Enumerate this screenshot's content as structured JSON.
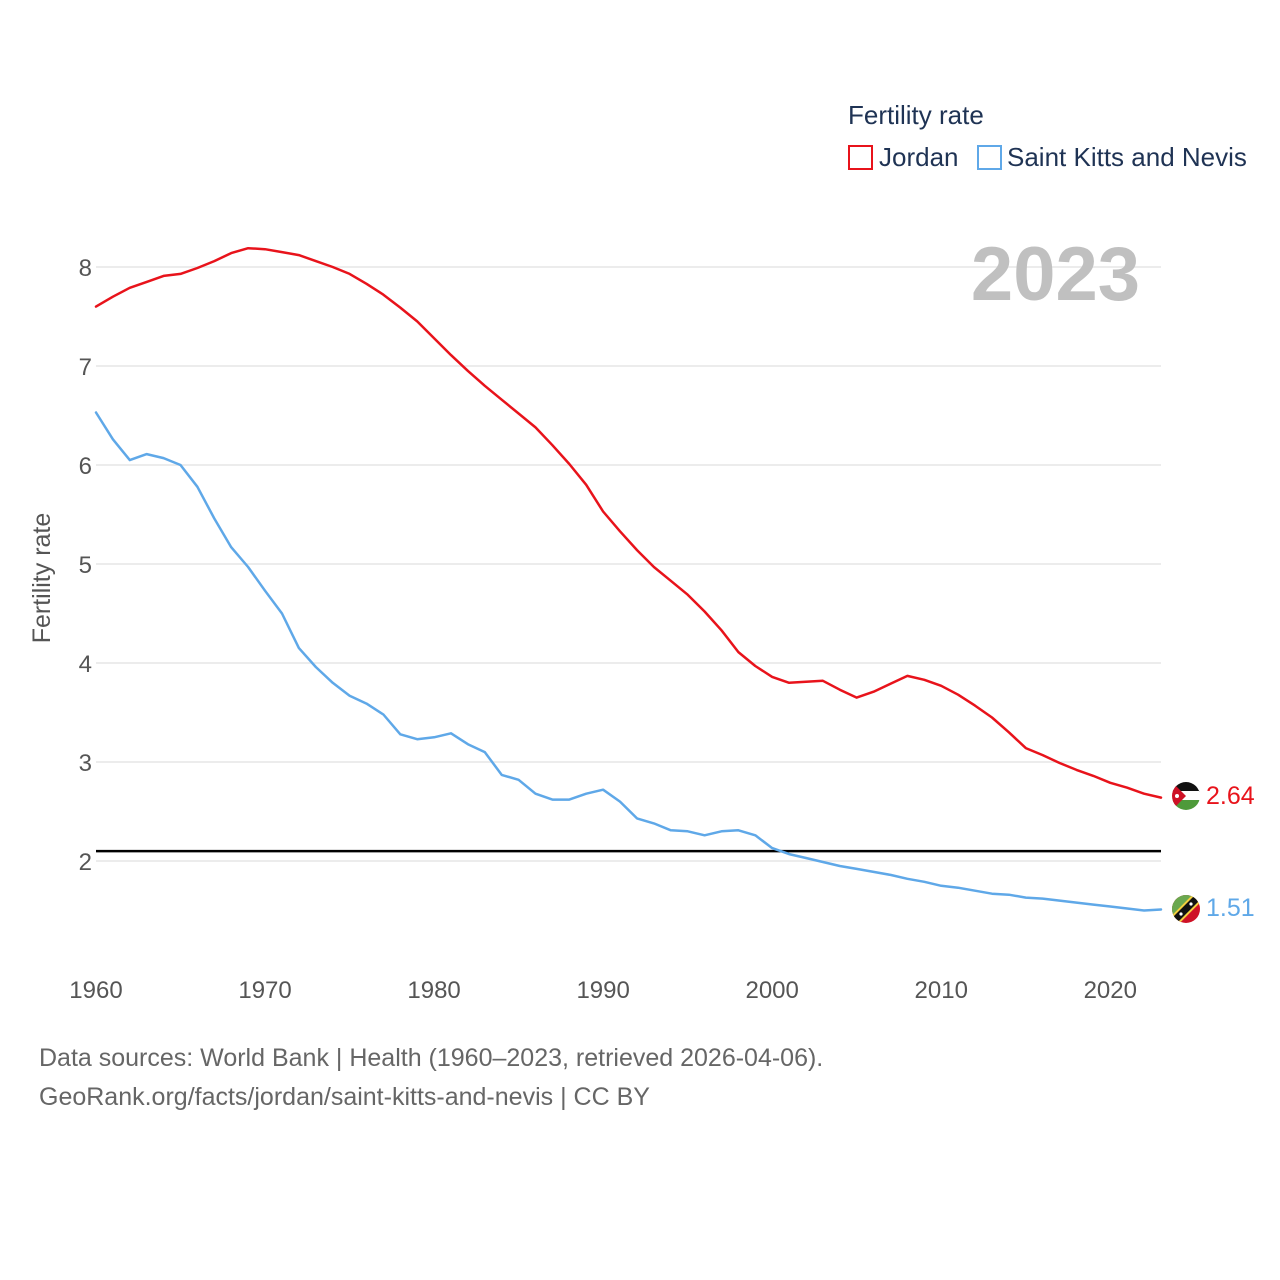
{
  "chart_data": {
    "type": "line",
    "year_label": "2023",
    "ylabel": "Fertility rate",
    "xlabel": "",
    "xlim": [
      1960,
      2023
    ],
    "ylim": [
      1.0,
      8.6
    ],
    "x_ticks": [
      1960,
      1970,
      1980,
      1990,
      2000,
      2010,
      2020
    ],
    "y_ticks": [
      2,
      3,
      4,
      5,
      6,
      7,
      8
    ],
    "grid": true,
    "legend": {
      "title": "Fertility rate",
      "position": "top-right"
    },
    "reference_line": {
      "value": 2.1,
      "color": "#000000"
    },
    "x": [
      1960,
      1961,
      1962,
      1963,
      1964,
      1965,
      1966,
      1967,
      1968,
      1969,
      1970,
      1971,
      1972,
      1973,
      1974,
      1975,
      1976,
      1977,
      1978,
      1979,
      1980,
      1981,
      1982,
      1983,
      1984,
      1985,
      1986,
      1987,
      1988,
      1989,
      1990,
      1991,
      1992,
      1993,
      1994,
      1995,
      1996,
      1997,
      1998,
      1999,
      2000,
      2001,
      2002,
      2003,
      2004,
      2005,
      2006,
      2007,
      2008,
      2009,
      2010,
      2011,
      2012,
      2013,
      2014,
      2015,
      2016,
      2017,
      2018,
      2019,
      2020,
      2021,
      2022,
      2023
    ],
    "series": [
      {
        "name": "Jordan",
        "color": "#e8131b",
        "end_value": "2.64",
        "flag": "jordan-flag-icon",
        "values": [
          7.6,
          7.7,
          7.79,
          7.85,
          7.91,
          7.93,
          7.99,
          8.06,
          8.14,
          8.19,
          8.18,
          8.15,
          8.12,
          8.06,
          8.0,
          7.93,
          7.83,
          7.72,
          7.59,
          7.45,
          7.28,
          7.11,
          6.95,
          6.8,
          6.66,
          6.52,
          6.38,
          6.2,
          6.01,
          5.8,
          5.53,
          5.33,
          5.14,
          4.97,
          4.83,
          4.69,
          4.52,
          4.33,
          4.11,
          3.97,
          3.86,
          3.8,
          3.81,
          3.82,
          3.73,
          3.65,
          3.71,
          3.79,
          3.87,
          3.83,
          3.77,
          3.68,
          3.57,
          3.45,
          3.3,
          3.14,
          3.07,
          2.99,
          2.92,
          2.86,
          2.79,
          2.74,
          2.68,
          2.64
        ]
      },
      {
        "name": "Saint Kitts and Nevis",
        "color": "#5fa8e8",
        "end_value": "1.51",
        "flag": "saint-kitts-and-nevis-flag-icon",
        "values": [
          6.53,
          6.26,
          6.05,
          6.11,
          6.07,
          6.0,
          5.78,
          5.46,
          5.17,
          4.97,
          4.73,
          4.5,
          4.15,
          3.96,
          3.8,
          3.67,
          3.59,
          3.48,
          3.28,
          3.23,
          3.25,
          3.29,
          3.18,
          3.1,
          2.87,
          2.82,
          2.68,
          2.62,
          2.62,
          2.68,
          2.72,
          2.6,
          2.43,
          2.38,
          2.31,
          2.3,
          2.26,
          2.3,
          2.31,
          2.26,
          2.13,
          2.07,
          2.03,
          1.99,
          1.95,
          1.92,
          1.89,
          1.86,
          1.82,
          1.79,
          1.75,
          1.73,
          1.7,
          1.67,
          1.66,
          1.63,
          1.62,
          1.6,
          1.58,
          1.56,
          1.54,
          1.52,
          1.5,
          1.51
        ]
      }
    ]
  },
  "footer": {
    "line1": "Data sources: World Bank | Health (1960–2023, retrieved 2026-04-06).",
    "line2": "GeoRank.org/facts/jordan/saint-kitts-and-nevis | CC BY"
  }
}
